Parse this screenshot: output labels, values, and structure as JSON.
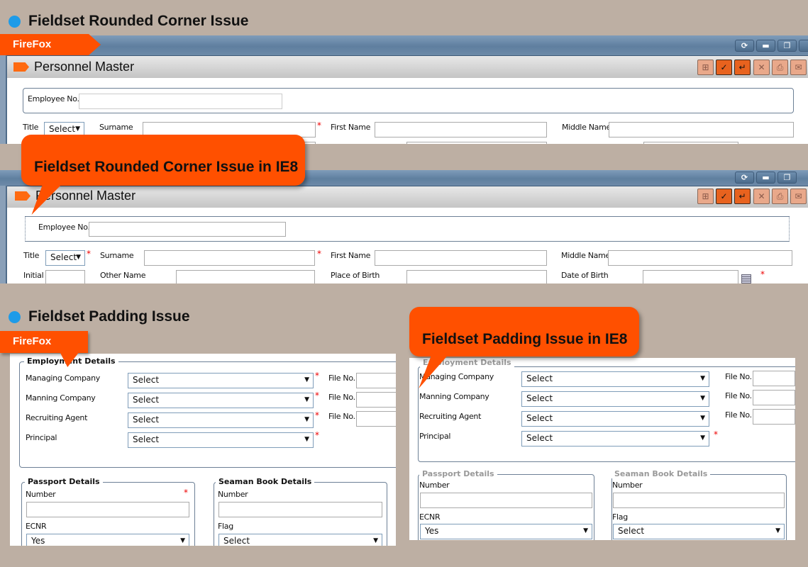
{
  "colors": {
    "accent": "#ff5000",
    "bullet": "#1e9be8",
    "background": "#bdafa3",
    "titlebar": "#5f7f9f"
  },
  "sections": [
    {
      "title": "Fieldset Rounded Corner Issue"
    },
    {
      "title": "Fieldset Padding Issue"
    }
  ],
  "tags": {
    "firefox": "FireFox"
  },
  "callouts": {
    "rounded": "Fieldset Rounded Corner Issue in IE8",
    "padding": "Fieldset Padding Issue in IE8"
  },
  "window_buttons": [
    {
      "icon": "refresh-icon",
      "glyph": "⟳"
    },
    {
      "icon": "minimize-icon",
      "glyph": "▬"
    },
    {
      "icon": "restore-icon",
      "glyph": "❐"
    }
  ],
  "toolbar": [
    {
      "icon": "new-document-icon",
      "glyph": "⊞",
      "active": false
    },
    {
      "icon": "save-document-icon",
      "glyph": "✓",
      "active": true
    },
    {
      "icon": "import-icon",
      "glyph": "↵",
      "active": true
    },
    {
      "icon": "delete-document-icon",
      "glyph": "✕",
      "active": false
    },
    {
      "icon": "print-icon",
      "glyph": "⎙",
      "active": false
    },
    {
      "icon": "mail-icon",
      "glyph": "✉",
      "active": false
    }
  ],
  "personnel": {
    "title": "Personnel Master",
    "employee_no": "Employee No.",
    "title_label": "Title",
    "title_value": "Select",
    "required": "*",
    "surname": "Surname",
    "first_name": "First Name",
    "middle_name": "Middle Name",
    "initial": "Initial",
    "other_name": "Other Name",
    "place_of_birth": "Place of Birth",
    "date_of_birth": "Date of Birth"
  },
  "employment": {
    "legend": "Employment Details",
    "rows": [
      {
        "label": "Managing Company",
        "value": "Select",
        "file_label": "File No."
      },
      {
        "label": "Manning Company",
        "value": "Select",
        "file_label": "File No."
      },
      {
        "label": "Recruiting Agent",
        "value": "Select",
        "file_label": "File No."
      },
      {
        "label": "Principal",
        "value": "Select"
      }
    ]
  },
  "passport": {
    "legend": "Passport Details",
    "number_label": "Number",
    "ecnr_label": "ECNR",
    "ecnr_value": "Yes"
  },
  "seaman": {
    "legend": "Seaman Book Details",
    "number_label": "Number",
    "flag_label": "Flag",
    "flag_value": "Select"
  }
}
